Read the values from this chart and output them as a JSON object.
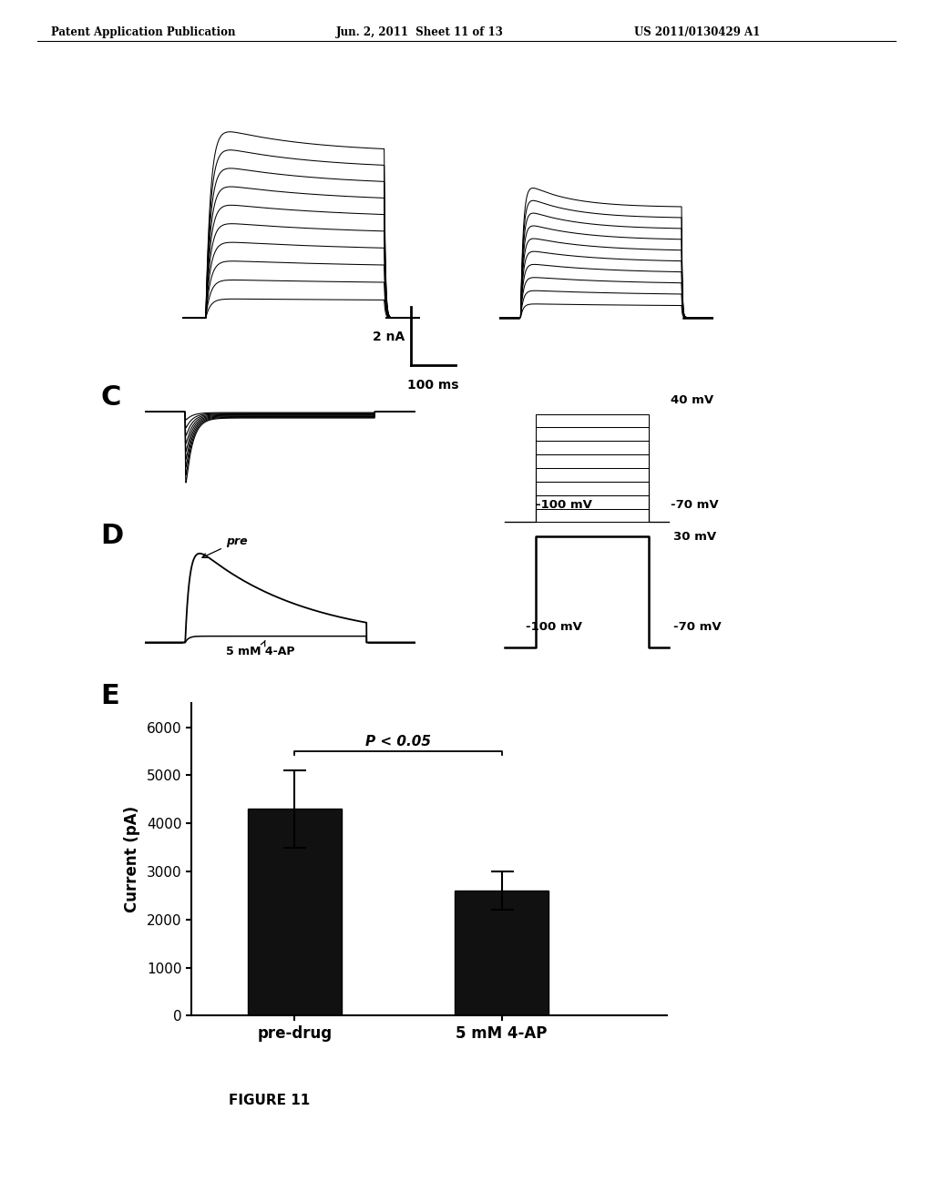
{
  "header_left": "Patent Application Publication",
  "header_mid": "Jun. 2, 2011  Sheet 11 of 13",
  "header_right": "US 2011/0130429 A1",
  "figure_label": "FIGURE 11",
  "panel_C_label": "C",
  "panel_D_label": "D",
  "panel_E_label": "E",
  "scale_bar_text1": "2 nA",
  "scale_bar_text2": "100 ms",
  "voltage_protocol_C": {
    "top": "40 mV",
    "bottom_left": "-100 mV",
    "bottom_right": "-70 mV"
  },
  "voltage_protocol_D": {
    "top": "30 mV",
    "bottom_left": "-100 mV",
    "bottom_right": "-70 mV"
  },
  "panel_D_label_pre": "pre",
  "panel_D_label_4ap": "5 mM 4-AP",
  "bar_categories": [
    "pre-drug",
    "5 mM 4-AP"
  ],
  "bar_values": [
    4300,
    2600
  ],
  "bar_errors": [
    800,
    400
  ],
  "bar_color": "#111111",
  "ylabel": "Current (pA)",
  "yticks": [
    0,
    1000,
    2000,
    3000,
    4000,
    5000,
    6000
  ],
  "ylim": [
    0,
    6500
  ],
  "significance_text": "P < 0.05",
  "bg_color": "#ffffff",
  "text_color": "#000000"
}
